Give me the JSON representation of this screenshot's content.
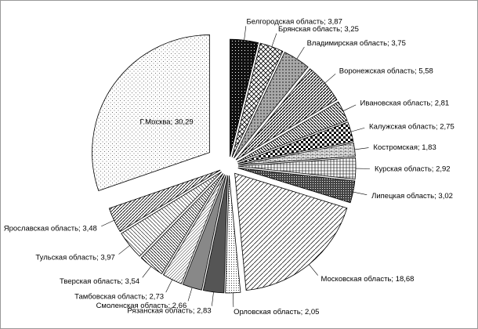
{
  "chart_data": {
    "type": "pie",
    "label_separator": "; ",
    "categories": [
      "Белгородская область",
      "Брянская область",
      "Владимирская область",
      "Воронежская область",
      "Ивановская область",
      "Калужская область",
      "Костромская",
      "Курская область",
      "Липецкая область",
      "Московская область",
      "Орловская область",
      "Рязанская область",
      "Смоленская область",
      "Тамбовская область",
      "Тверская область",
      "Тульская область",
      "Ярославская область",
      "Г.Москва"
    ],
    "values": [
      3.87,
      3.25,
      3.75,
      5.58,
      2.81,
      2.75,
      1.83,
      2.92,
      3.02,
      18.68,
      2.05,
      2.83,
      2.66,
      2.73,
      3.54,
      3.97,
      3.48,
      30.29
    ],
    "value_labels": [
      "3,87",
      "3,25",
      "3,75",
      "5,58",
      "2,81",
      "2,75",
      "1,83",
      "2,92",
      "3,02",
      "18,68",
      "2,05",
      "2,83",
      "2,66",
      "2,73",
      "3,54",
      "3,97",
      "3,48",
      "30,29"
    ]
  }
}
